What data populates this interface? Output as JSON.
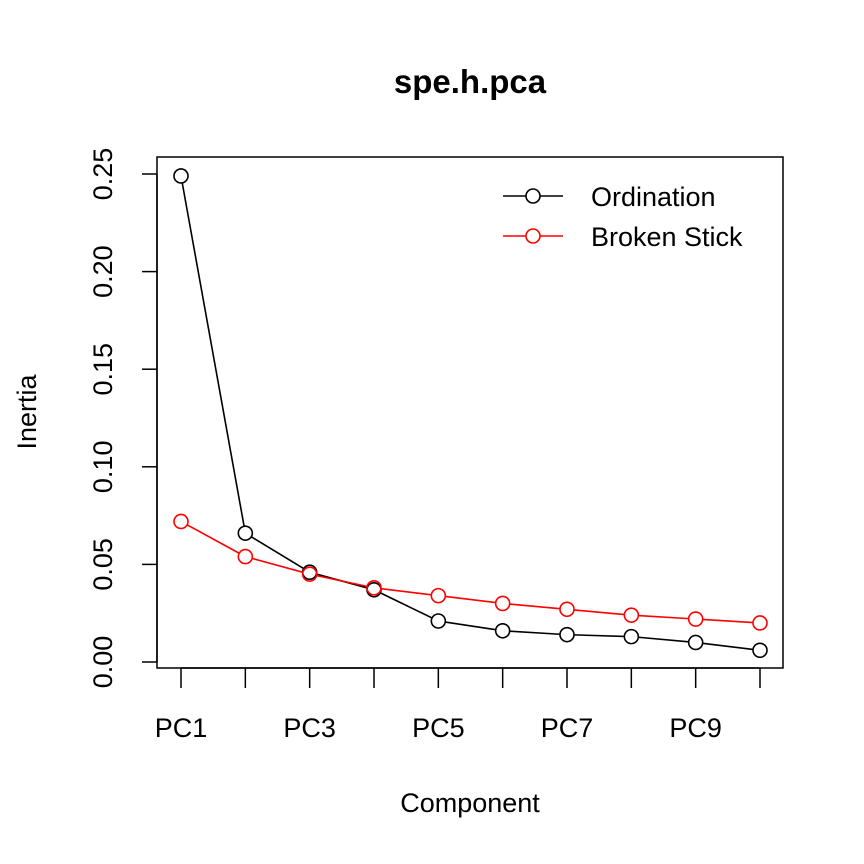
{
  "chart_data": {
    "type": "line",
    "title": "spe.h.pca",
    "xlabel": "Component",
    "ylabel": "Inertia",
    "categories": [
      "PC1",
      "PC2",
      "PC3",
      "PC4",
      "PC5",
      "PC6",
      "PC7",
      "PC8",
      "PC9",
      "PC10"
    ],
    "x_tick_labels": [
      "PC1",
      "",
      "PC3",
      "",
      "PC5",
      "",
      "PC7",
      "",
      "PC9",
      ""
    ],
    "y_ticks": [
      "0.00",
      "0.05",
      "0.10",
      "0.15",
      "0.20",
      "0.25"
    ],
    "ylim": [
      0,
      0.25
    ],
    "grid": false,
    "legend_position": "top-right",
    "series": [
      {
        "name": "Ordination",
        "color": "#000000",
        "marker": "open-circle",
        "values": [
          0.249,
          0.066,
          0.046,
          0.037,
          0.021,
          0.016,
          0.014,
          0.013,
          0.01,
          0.006
        ]
      },
      {
        "name": "Broken Stick",
        "color": "#ff0000",
        "marker": "open-circle",
        "values": [
          0.072,
          0.054,
          0.045,
          0.038,
          0.034,
          0.03,
          0.027,
          0.024,
          0.022,
          0.02
        ]
      }
    ]
  }
}
